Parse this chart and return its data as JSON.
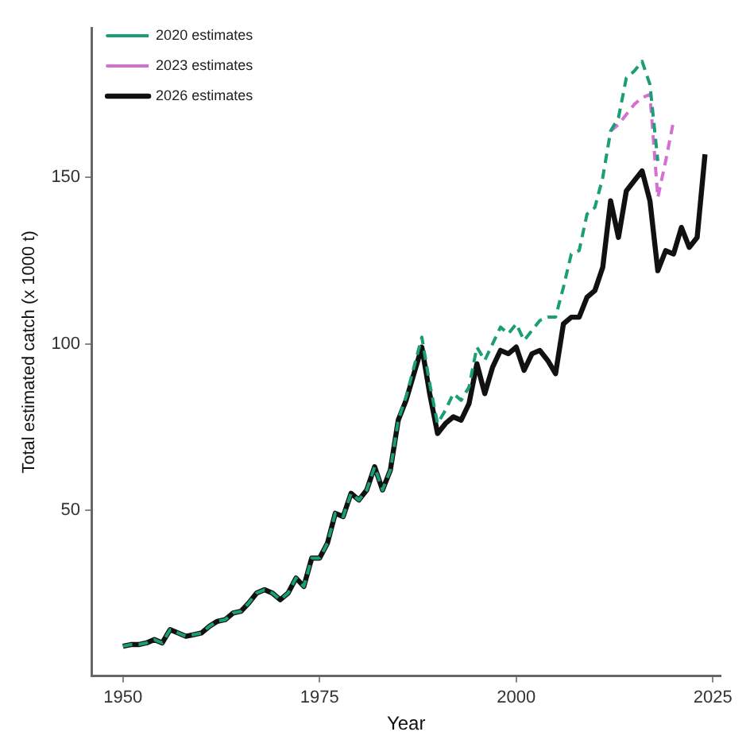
{
  "chart_data": {
    "type": "line",
    "xlabel": "Year",
    "ylabel": "Total estimated catch (x 1000 t)",
    "x": [
      1950,
      1951,
      1952,
      1953,
      1954,
      1955,
      1956,
      1957,
      1958,
      1959,
      1960,
      1961,
      1962,
      1963,
      1964,
      1965,
      1966,
      1967,
      1968,
      1969,
      1970,
      1971,
      1972,
      1973,
      1974,
      1975,
      1976,
      1977,
      1978,
      1979,
      1980,
      1981,
      1982,
      1983,
      1984,
      1985,
      1986,
      1987,
      1988,
      1989,
      1990,
      1991,
      1992,
      1993,
      1994,
      1995,
      1996,
      1997,
      1998,
      1999,
      2000,
      2001,
      2002,
      2003,
      2004,
      2005,
      2006,
      2007,
      2008,
      2009,
      2010,
      2011,
      2012,
      2013,
      2014,
      2015,
      2016,
      2017,
      2018,
      2019,
      2020,
      2021,
      2022,
      2023,
      2024
    ],
    "series": [
      {
        "name": "2020 estimates",
        "color": "#1b9e77",
        "line_style": "dashed",
        "values": [
          9,
          9.5,
          9.5,
          10,
          11,
          10,
          14,
          13,
          12,
          12.5,
          13,
          15,
          16.5,
          17,
          19,
          19.5,
          22,
          25,
          26,
          25,
          23,
          25,
          29.5,
          27,
          35.5,
          35.5,
          40,
          49,
          48,
          55,
          53,
          56,
          63,
          56,
          62,
          77,
          84,
          93,
          102,
          88,
          76,
          80,
          85,
          83,
          87,
          99,
          95,
          100,
          105,
          103,
          106,
          101,
          104,
          107,
          108,
          108,
          117,
          127,
          128,
          139,
          141,
          150,
          164,
          168,
          180,
          182,
          185,
          178,
          155,
          null,
          null,
          null,
          null,
          null,
          null
        ]
      },
      {
        "name": "2023 estimates",
        "color": "#d56fd2",
        "line_style": "dashed",
        "values": [
          null,
          null,
          null,
          null,
          null,
          null,
          null,
          null,
          null,
          null,
          null,
          null,
          null,
          null,
          null,
          null,
          null,
          null,
          null,
          null,
          null,
          null,
          null,
          null,
          null,
          null,
          null,
          null,
          null,
          null,
          null,
          null,
          null,
          null,
          null,
          null,
          null,
          null,
          null,
          null,
          null,
          null,
          null,
          null,
          null,
          null,
          null,
          null,
          null,
          null,
          null,
          null,
          null,
          null,
          null,
          null,
          null,
          null,
          null,
          null,
          null,
          null,
          164,
          166,
          169,
          172,
          174,
          175,
          144,
          155,
          167,
          null,
          null,
          null,
          null
        ]
      },
      {
        "name": "2026 estimates",
        "color": "#111111",
        "line_style": "solid",
        "values": [
          9,
          9.5,
          9.5,
          10,
          11,
          10,
          14,
          13,
          12,
          12.5,
          13,
          15,
          16.5,
          17,
          19,
          19.5,
          22,
          25,
          26,
          25,
          23,
          25,
          29.5,
          27,
          35.5,
          35.5,
          40,
          49,
          48,
          55,
          53,
          56,
          63,
          56,
          62,
          77,
          83,
          91,
          99,
          85,
          73,
          76,
          78,
          77,
          82,
          94,
          85,
          93,
          98,
          97,
          99,
          92,
          97,
          98,
          95,
          91,
          106,
          108,
          108,
          114,
          116,
          123,
          143,
          132,
          146,
          149,
          152,
          143,
          122,
          128,
          127,
          135,
          129,
          132,
          157
        ]
      }
    ],
    "xlim": [
      1946,
      2026
    ],
    "xticks": [
      1950,
      1975,
      2000,
      2025
    ],
    "ylim": [
      0,
      195
    ],
    "yticks": [
      50,
      100,
      150
    ],
    "grid": false,
    "legend": "top left",
    "marker": "none"
  }
}
